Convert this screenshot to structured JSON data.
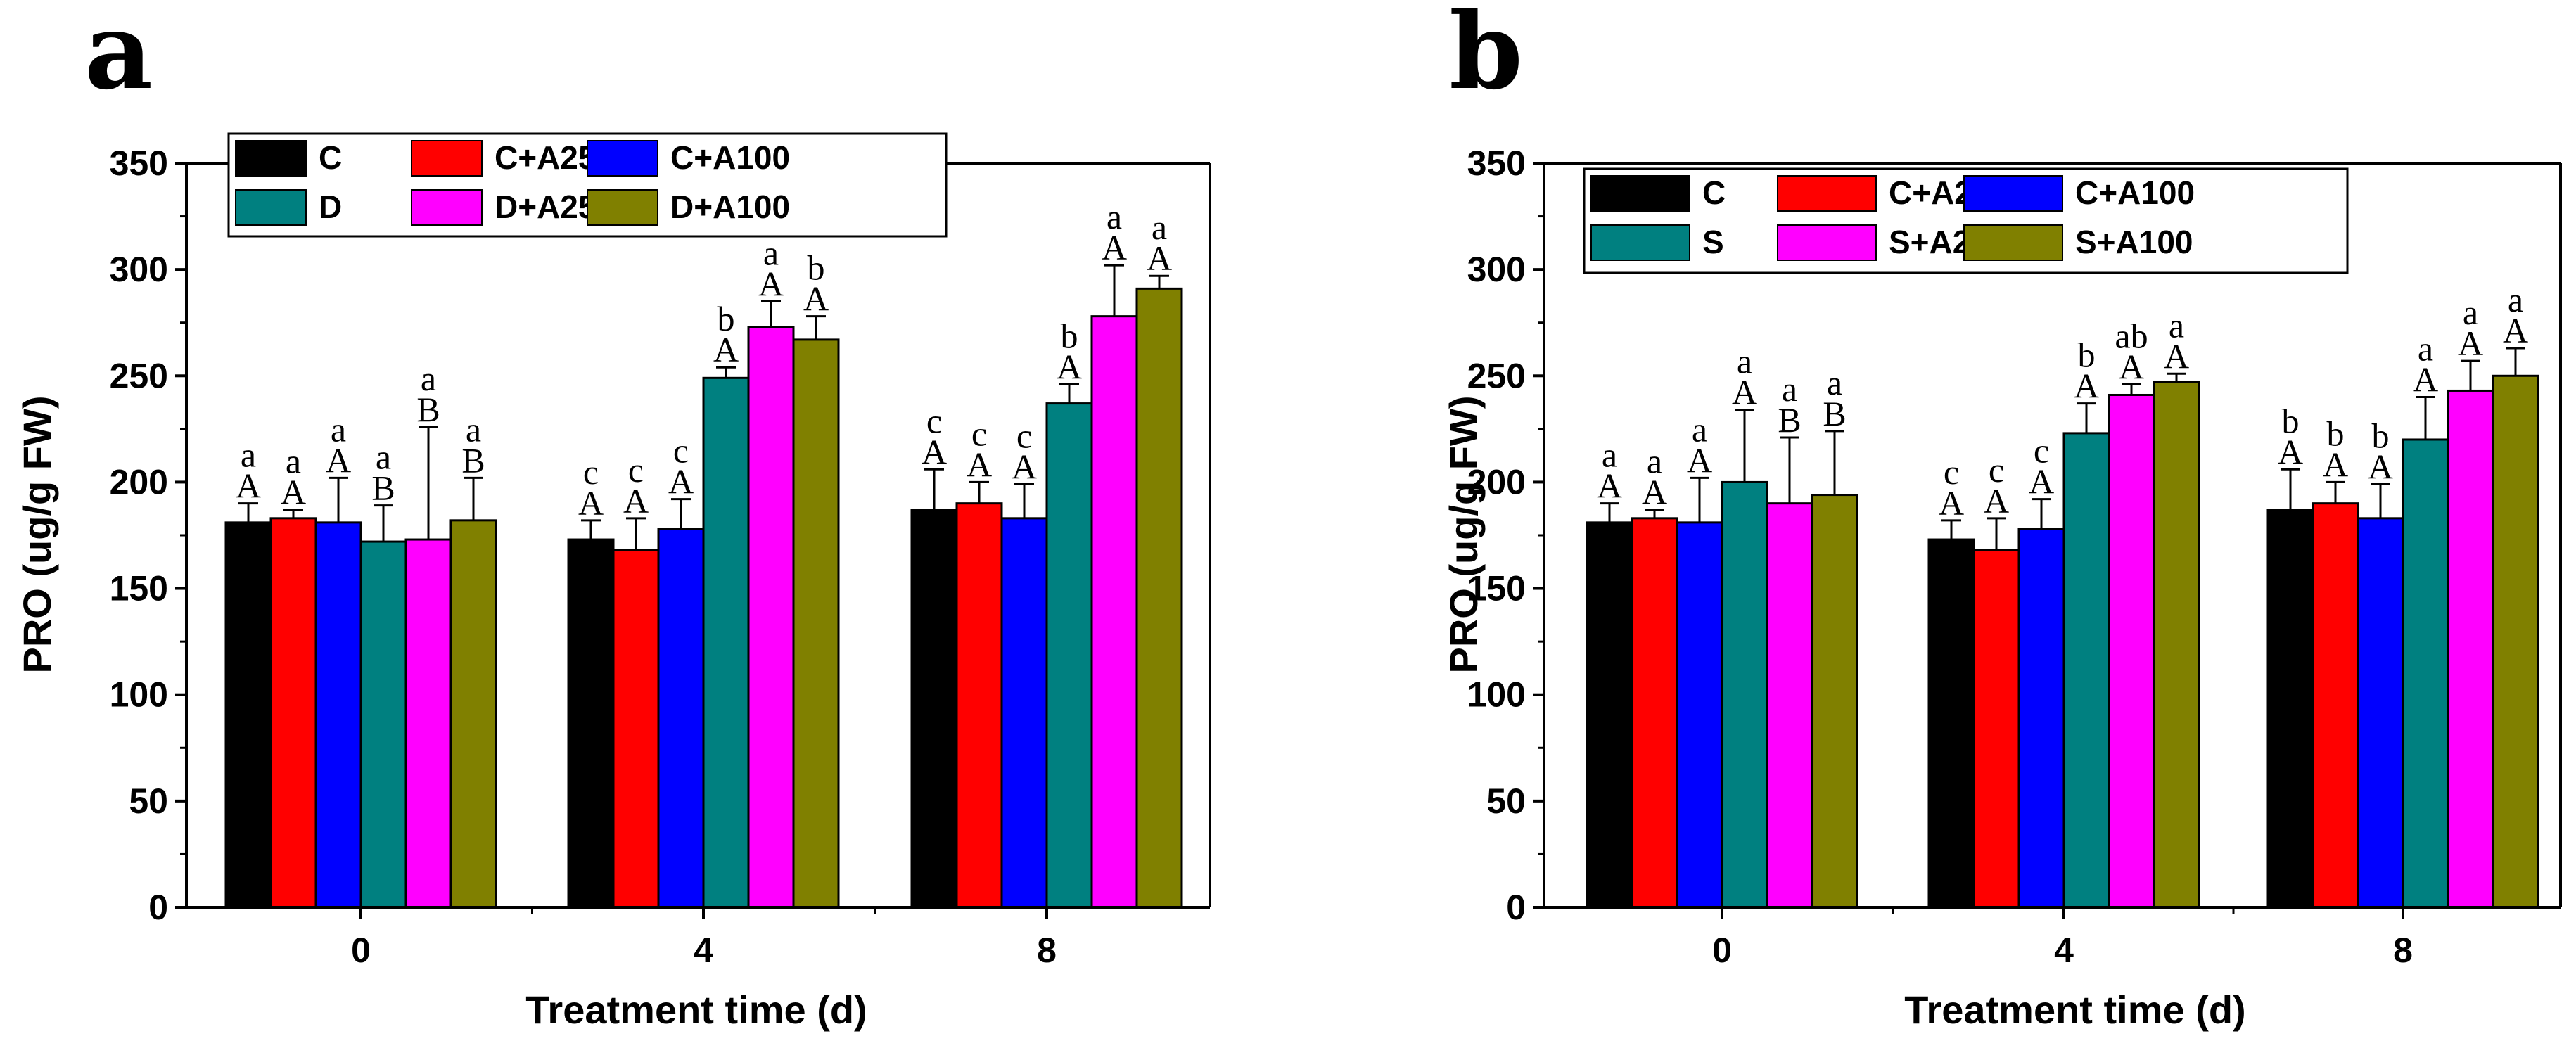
{
  "colors": {
    "black": "#000000",
    "red": "#ff0000",
    "blue": "#0000ff",
    "teal": "#008080",
    "magenta": "#ff00ff",
    "olive": "#808000"
  },
  "chart_data": [
    {
      "type": "bar",
      "panel_label": "a",
      "xlabel": "Treatment time (d)",
      "ylabel": "PRO (ug/g FW)",
      "ylim": [
        0,
        350
      ],
      "yticks": [
        0,
        50,
        100,
        150,
        200,
        250,
        300,
        350
      ],
      "categories": [
        "0",
        "4",
        "8"
      ],
      "grid": false,
      "legend_position": "top-left",
      "series": [
        {
          "name": "C",
          "color": "#000000",
          "values": [
            181,
            173,
            187
          ],
          "errors": [
            9,
            9,
            19
          ],
          "letters_lower": [
            "a",
            "c",
            "c"
          ],
          "letters_upper": [
            "A",
            "A",
            "A"
          ]
        },
        {
          "name": "C+A25",
          "color": "#ff0000",
          "values": [
            183,
            168,
            190
          ],
          "errors": [
            4,
            15,
            10
          ],
          "letters_lower": [
            "a",
            "c",
            "c"
          ],
          "letters_upper": [
            "A",
            "A",
            "A"
          ]
        },
        {
          "name": "C+A100",
          "color": "#0000ff",
          "values": [
            181,
            178,
            183
          ],
          "errors": [
            21,
            14,
            16
          ],
          "letters_lower": [
            "a",
            "c",
            "c"
          ],
          "letters_upper": [
            "A",
            "A",
            "A"
          ]
        },
        {
          "name": "D",
          "color": "#008080",
          "values": [
            172,
            249,
            237
          ],
          "errors": [
            17,
            5,
            9
          ],
          "letters_lower": [
            "a",
            "b",
            "b"
          ],
          "letters_upper": [
            "B",
            "A",
            "A"
          ]
        },
        {
          "name": "D+A25",
          "color": "#ff00ff",
          "values": [
            173,
            273,
            278
          ],
          "errors": [
            53,
            12,
            24
          ],
          "letters_lower": [
            "a",
            "a",
            "a"
          ],
          "letters_upper": [
            "B",
            "A",
            "A"
          ]
        },
        {
          "name": "D+A100",
          "color": "#808000",
          "values": [
            182,
            267,
            291
          ],
          "errors": [
            20,
            11,
            6
          ],
          "letters_lower": [
            "a",
            "b",
            "a"
          ],
          "letters_upper": [
            "B",
            "A",
            "A"
          ]
        }
      ]
    },
    {
      "type": "bar",
      "panel_label": "b",
      "xlabel": "Treatment time (d)",
      "ylabel": "PRO (ug/g FW)",
      "ylim": [
        0,
        350
      ],
      "yticks": [
        0,
        50,
        100,
        150,
        200,
        250,
        300,
        350
      ],
      "categories": [
        "0",
        "4",
        "8"
      ],
      "grid": false,
      "legend_position": "top",
      "series": [
        {
          "name": "C",
          "color": "#000000",
          "values": [
            181,
            173,
            187
          ],
          "errors": [
            9,
            9,
            19
          ],
          "letters_lower": [
            "a",
            "c",
            "b"
          ],
          "letters_upper": [
            "A",
            "A",
            "A"
          ]
        },
        {
          "name": "C+A25",
          "color": "#ff0000",
          "values": [
            183,
            168,
            190
          ],
          "errors": [
            4,
            15,
            10
          ],
          "letters_lower": [
            "a",
            "c",
            "b"
          ],
          "letters_upper": [
            "A",
            "A",
            "A"
          ]
        },
        {
          "name": "C+A100",
          "color": "#0000ff",
          "values": [
            181,
            178,
            183
          ],
          "errors": [
            21,
            14,
            16
          ],
          "letters_lower": [
            "a",
            "c",
            "b"
          ],
          "letters_upper": [
            "A",
            "A",
            "A"
          ]
        },
        {
          "name": "S",
          "color": "#008080",
          "values": [
            200,
            223,
            220
          ],
          "errors": [
            34,
            14,
            20
          ],
          "letters_lower": [
            "a",
            "b",
            "a"
          ],
          "letters_upper": [
            "A",
            "A",
            "A"
          ]
        },
        {
          "name": "S+A25",
          "color": "#ff00ff",
          "values": [
            190,
            241,
            243
          ],
          "errors": [
            31,
            5,
            14
          ],
          "letters_lower": [
            "a",
            "ab",
            "a"
          ],
          "letters_upper": [
            "B",
            "A",
            "A"
          ]
        },
        {
          "name": "S+A100",
          "color": "#808000",
          "values": [
            194,
            247,
            250
          ],
          "errors": [
            30,
            4,
            13
          ],
          "letters_lower": [
            "a",
            "a",
            "a"
          ],
          "letters_upper": [
            "B",
            "A",
            "A"
          ]
        }
      ]
    }
  ]
}
